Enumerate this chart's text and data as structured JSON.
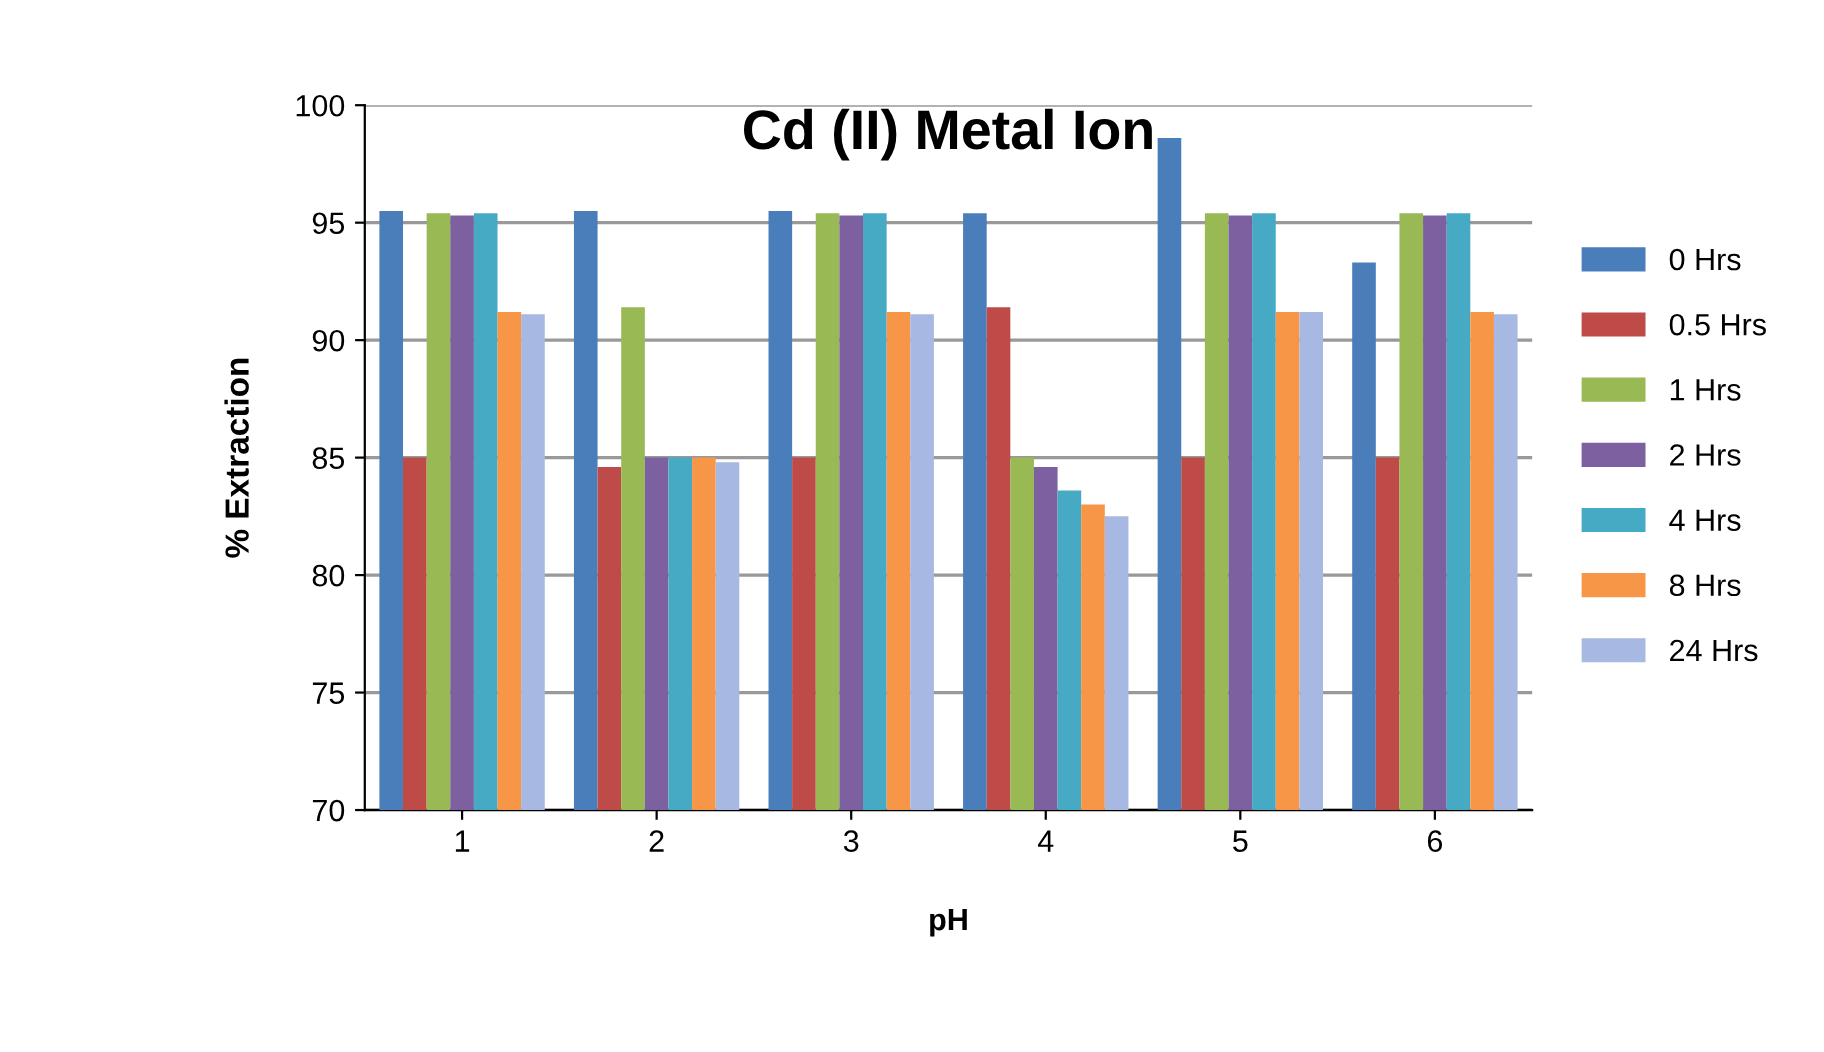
{
  "chart_data": {
    "type": "bar",
    "title": "Cd (II) Metal Ion",
    "xlabel": "pH",
    "ylabel": "% Extraction",
    "categories": [
      "1",
      "2",
      "3",
      "4",
      "5",
      "6"
    ],
    "series": [
      {
        "name": "0 Hrs",
        "color": "#4a7ebb",
        "values": [
          95.5,
          95.5,
          95.5,
          95.4,
          98.6,
          93.3
        ]
      },
      {
        "name": "0.5 Hrs",
        "color": "#be4b48",
        "values": [
          85,
          84.6,
          85,
          91.4,
          85,
          85
        ]
      },
      {
        "name": "1 Hrs",
        "color": "#98b954",
        "values": [
          95.4,
          91.4,
          95.4,
          85,
          95.4,
          95.4
        ]
      },
      {
        "name": "2 Hrs",
        "color": "#7d60a0",
        "values": [
          95.3,
          85,
          95.3,
          84.6,
          95.3,
          95.3
        ]
      },
      {
        "name": "4 Hrs",
        "color": "#46aac5",
        "values": [
          95.4,
          85,
          95.4,
          83.6,
          95.4,
          95.4
        ]
      },
      {
        "name": "8 Hrs",
        "color": "#f79646",
        "values": [
          91.2,
          85,
          91.2,
          83,
          91.2,
          91.2
        ]
      },
      {
        "name": "24 Hrs",
        "color": "#a7b9e3",
        "values": [
          91.1,
          84.8,
          91.1,
          82.5,
          91.2,
          91.1
        ]
      }
    ],
    "ylim": [
      70,
      100
    ],
    "yticks": [
      70,
      75,
      80,
      85,
      90,
      95,
      100
    ],
    "grid": "y",
    "legend": "right"
  }
}
